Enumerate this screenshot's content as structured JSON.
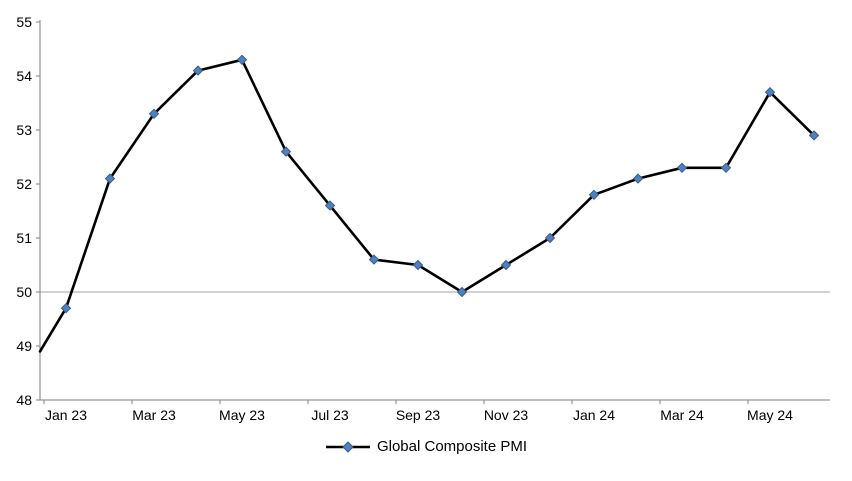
{
  "chart_data": {
    "type": "line",
    "title": "",
    "xlabel": "",
    "ylabel": "",
    "x_categories": [
      "Jan 23",
      "Feb 23",
      "Mar 23",
      "Apr 23",
      "May 23",
      "Jun 23",
      "Jul 23",
      "Aug 23",
      "Sep 23",
      "Oct 23",
      "Nov 23",
      "Dec 23",
      "Jan 24",
      "Feb 24",
      "Mar 24",
      "Apr 24",
      "May 24",
      "Jun 24"
    ],
    "series": [
      {
        "name": "Global Composite PMI",
        "values": [
          49.7,
          52.1,
          53.3,
          54.1,
          54.3,
          52.6,
          51.6,
          50.6,
          50.5,
          50.0,
          50.5,
          51.0,
          51.8,
          52.1,
          52.3,
          52.3,
          53.7,
          52.9
        ],
        "edge_start_value": 48.9
      }
    ],
    "x_tick_labels": [
      "Jan 23",
      "Mar 23",
      "May 23",
      "Jul 23",
      "Sep 23",
      "Nov 23",
      "Jan 24",
      "Mar 24",
      "May 24"
    ],
    "x_tick_label_every": 2,
    "y_ticks": [
      "55",
      "54",
      "53",
      "52",
      "51",
      "50",
      "49",
      "48"
    ],
    "y_tick_values": [
      55,
      54,
      53,
      52,
      51,
      50,
      49,
      48
    ],
    "ylim": [
      48,
      55
    ],
    "reference_line_value": 50,
    "grid": "reference-line-only",
    "legend": {
      "label": "Global Composite PMI",
      "position": "bottom"
    },
    "colors": {
      "line": "#000000",
      "marker_fill": "#4f81bd",
      "marker_stroke": "#385d8a",
      "axis": "#7f7f7f",
      "reference_line": "#a6a6a6",
      "tick_label": "#000000"
    }
  }
}
